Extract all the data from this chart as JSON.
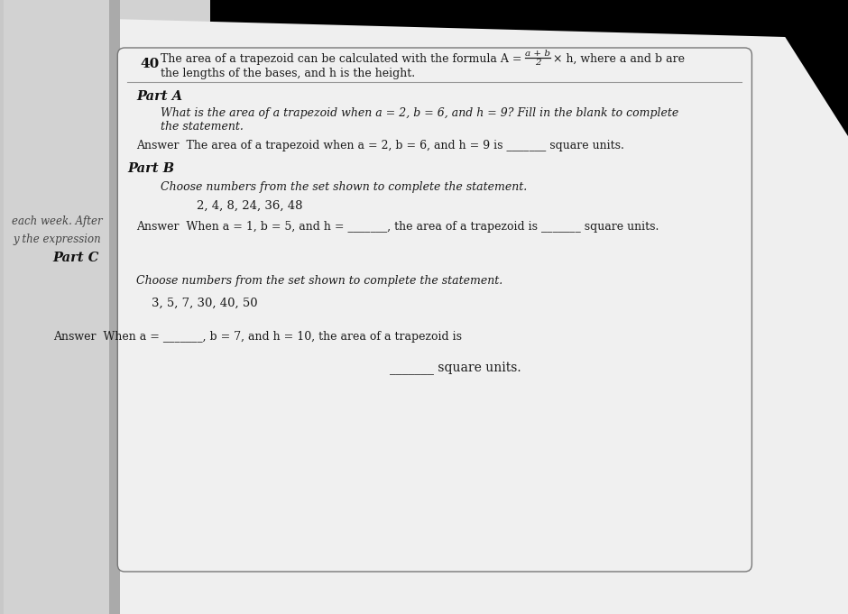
{
  "bg_color_top": "#c8c8c8",
  "bg_color_bottom": "#a0a0a0",
  "left_page_color": "#d8d8d8",
  "right_page_color": "#e8e8e8",
  "text_color": "#1a1a1a",
  "bold_color": "#111111",
  "line_color": "#888888",
  "left_text1": "each week. After",
  "left_text2": "y the expression",
  "title_num": "40",
  "title_line1a": "The area of a trapezoid can be calculated with the formula A = ",
  "title_frac_num": "a + b",
  "title_frac_den": "2",
  "title_line1b": "× h, where a and b are",
  "title_line2": "the lengths of the bases, and h is the height.",
  "part_a_label": "Part A",
  "part_a_q1": "What is the area of a trapezoid when a = 2, b = 6, and h = 9? Fill in the blank to complete",
  "part_a_q2": "the statement.",
  "part_a_ans": "Answer  The area of a trapezoid when a = 2, b = 6, and h = 9 is _______ square units.",
  "part_b_label": "Part B",
  "part_b_q": "Choose numbers from the set shown to complete the statement.",
  "part_b_set": "2, 4, 8, 24, 36, 48",
  "part_b_ans": "Answer  When a = 1, b = 5, and h = _______, the area of a trapezoid is _______ square units.",
  "part_c_label": "Part C",
  "part_c_q": "Choose numbers from the set shown to complete the statement.",
  "part_c_set": "3, 5, 7, 30, 40, 50",
  "part_c_ans1": "Answer  When a = _______, b = 7, and h = 10, the area of a trapezoid is",
  "part_c_ans2": "_______ square units."
}
